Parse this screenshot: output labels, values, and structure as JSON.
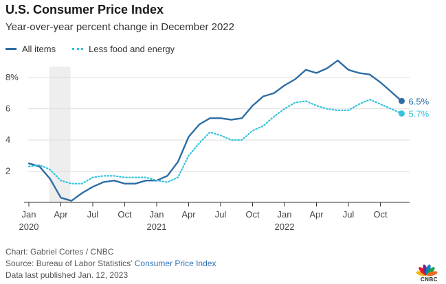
{
  "chart_data": {
    "type": "line",
    "title": "U.S. Consumer Price Index",
    "subtitle": "Year-over-year percent change in December 2022",
    "x": [
      "2020-01",
      "2020-02",
      "2020-03",
      "2020-04",
      "2020-05",
      "2020-06",
      "2020-07",
      "2020-08",
      "2020-09",
      "2020-10",
      "2020-11",
      "2020-12",
      "2021-01",
      "2021-02",
      "2021-03",
      "2021-04",
      "2021-05",
      "2021-06",
      "2021-07",
      "2021-08",
      "2021-09",
      "2021-10",
      "2021-11",
      "2021-12",
      "2022-01",
      "2022-02",
      "2022-03",
      "2022-04",
      "2022-05",
      "2022-06",
      "2022-07",
      "2022-08",
      "2022-09",
      "2022-10",
      "2022-11",
      "2022-12"
    ],
    "x_ticks": [
      {
        "label": "Jan",
        "year": "2020",
        "index": 0
      },
      {
        "label": "Apr",
        "year": "",
        "index": 3
      },
      {
        "label": "Jul",
        "year": "",
        "index": 6
      },
      {
        "label": "Oct",
        "year": "",
        "index": 9
      },
      {
        "label": "Jan",
        "year": "2021",
        "index": 12
      },
      {
        "label": "Apr",
        "year": "",
        "index": 15
      },
      {
        "label": "Jul",
        "year": "",
        "index": 18
      },
      {
        "label": "Oct",
        "year": "",
        "index": 21
      },
      {
        "label": "Jan",
        "year": "2022",
        "index": 24
      },
      {
        "label": "Apr",
        "year": "",
        "index": 27
      },
      {
        "label": "Jul",
        "year": "",
        "index": 30
      },
      {
        "label": "Oct",
        "year": "",
        "index": 33
      }
    ],
    "y_ticks": [
      {
        "value": 2,
        "label": "2"
      },
      {
        "value": 4,
        "label": "4"
      },
      {
        "value": 6,
        "label": "6"
      },
      {
        "value": 8,
        "label": "8%"
      }
    ],
    "ylim": [
      0,
      8.8
    ],
    "grid": true,
    "recession_shade": {
      "from_index": 1.9,
      "to_index": 3.9
    },
    "series": [
      {
        "name": "All items",
        "color": "#2e6da4",
        "style": "solid",
        "values": [
          2.5,
          2.3,
          1.5,
          0.3,
          0.1,
          0.6,
          1.0,
          1.3,
          1.4,
          1.2,
          1.2,
          1.4,
          1.4,
          1.7,
          2.6,
          4.2,
          5.0,
          5.4,
          5.4,
          5.3,
          5.4,
          6.2,
          6.8,
          7.0,
          7.5,
          7.9,
          8.5,
          8.3,
          8.6,
          9.1,
          8.5,
          8.3,
          8.2,
          7.7,
          7.1,
          6.5
        ],
        "end_label": "6.5%"
      },
      {
        "name": "Less food and energy",
        "color": "#34c3dc",
        "style": "dotted",
        "values": [
          2.3,
          2.4,
          2.1,
          1.4,
          1.2,
          1.2,
          1.6,
          1.7,
          1.7,
          1.6,
          1.6,
          1.6,
          1.4,
          1.3,
          1.6,
          3.0,
          3.8,
          4.5,
          4.3,
          4.0,
          4.0,
          4.6,
          4.9,
          5.5,
          6.0,
          6.4,
          6.5,
          6.2,
          6.0,
          5.9,
          5.9,
          6.3,
          6.6,
          6.3,
          6.0,
          5.7
        ],
        "end_label": "5.7%"
      }
    ]
  },
  "legend": {
    "all_items": "All items",
    "core": "Less food and energy"
  },
  "footer": {
    "credit": "Chart: Gabriel Cortes / CNBC",
    "source_prefix": "Source: Bureau of Labor Statistics' ",
    "source_link": "Consumer Price Index",
    "published": "Data last published Jan. 12, 2023"
  },
  "logo": {
    "text": "CNBC",
    "colors": [
      "#f2b31b",
      "#e8182b",
      "#6b2c91",
      "#0b7fc7",
      "#16a34a",
      "#ef6b1f"
    ]
  }
}
